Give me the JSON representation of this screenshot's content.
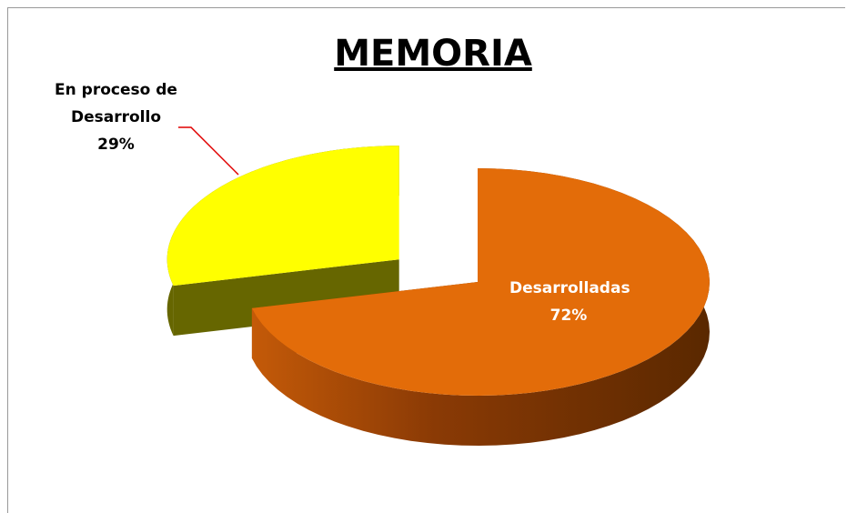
{
  "chart_data": {
    "type": "pie3d",
    "title": "MEMORIA",
    "categories": [
      "Desarrolladas",
      "En proceso de Desarrollo"
    ],
    "values": [
      72,
      29
    ],
    "value_labels": [
      "72%",
      "29%"
    ],
    "colors": [
      "#e36c09",
      "#ffff00"
    ],
    "exploded": [
      false,
      true
    ]
  }
}
